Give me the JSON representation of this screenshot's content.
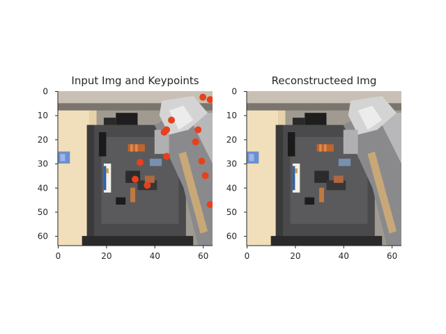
{
  "chart_data": [
    {
      "type": "scatter",
      "title": "Input Img and Keypoints",
      "image_size": [
        64,
        64
      ],
      "xticks": [
        0,
        20,
        40,
        60
      ],
      "yticks": [
        0,
        10,
        20,
        30,
        40,
        50,
        60
      ],
      "xlim": [
        0,
        63
      ],
      "ylim": [
        63,
        0
      ],
      "marker_color": "#e8401c",
      "keypoints": [
        {
          "x": 60,
          "y": 2.5
        },
        {
          "x": 63,
          "y": 3.5
        },
        {
          "x": 47,
          "y": 12
        },
        {
          "x": 58,
          "y": 16
        },
        {
          "x": 45,
          "y": 16
        },
        {
          "x": 44,
          "y": 17
        },
        {
          "x": 57,
          "y": 21
        },
        {
          "x": 34,
          "y": 29.5
        },
        {
          "x": 45,
          "y": 27
        },
        {
          "x": 59.5,
          "y": 29
        },
        {
          "x": 61,
          "y": 35
        },
        {
          "x": 32,
          "y": 36.5
        },
        {
          "x": 37,
          "y": 39
        },
        {
          "x": 63,
          "y": 47
        }
      ]
    },
    {
      "type": "image",
      "title": "Reconstructeed Img",
      "image_size": [
        64,
        64
      ],
      "xticks": [
        0,
        20,
        40,
        60
      ],
      "yticks": [
        0,
        10,
        20,
        30,
        40,
        50,
        60
      ],
      "xlim": [
        0,
        63
      ],
      "ylim": [
        63,
        0
      ]
    }
  ]
}
